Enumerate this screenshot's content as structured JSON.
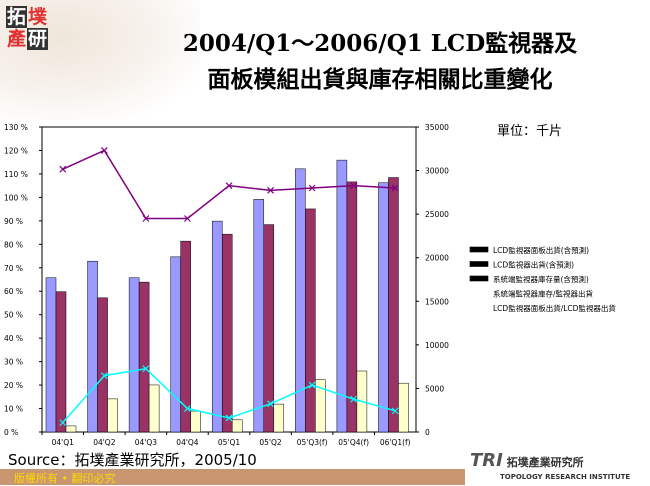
{
  "logo": {
    "chars": [
      "拓",
      "墣",
      "產",
      "研"
    ]
  },
  "title": {
    "line1": "2004/Q1～2006/Q1 LCD監視器及",
    "line2": "面板模組出貨與庫存相關比重變化"
  },
  "unit": "單位：千片",
  "source": "Source：拓墣產業研究所，2005/10",
  "footer": "版權所有 • 翻印必究",
  "brand": {
    "mark": "TRI",
    "name": "拓墣產業研究所",
    "en": "TOPOLOGY RESEARCH INSTITUTE"
  },
  "chart_data": {
    "type": "bar",
    "categories": [
      "04'Q1",
      "04'Q2",
      "04'Q3",
      "04'Q4",
      "05'Q1",
      "05'Q2",
      "05'Q3(f)",
      "05'Q4(f)",
      "06'Q1(f)"
    ],
    "y_left": {
      "range": [
        0,
        130
      ],
      "ticks": [
        "0 %",
        "10 %",
        "20 %",
        "30 %",
        "40 %",
        "50 %",
        "60 %",
        "70 %",
        "80 %",
        "90 %",
        "100 %",
        "110 %",
        "120 %",
        "130 %"
      ]
    },
    "y_right": {
      "range": [
        0,
        35000
      ],
      "ticks": [
        "0",
        "5000",
        "10000",
        "15000",
        "20000",
        "25000",
        "30000",
        "35000"
      ]
    },
    "bar_series": [
      {
        "name": "LCD監視器面板出貨(含預測)",
        "color": "#9999ff",
        "values": [
          17700,
          19600,
          17700,
          20100,
          24200,
          26700,
          30200,
          31200,
          28600
        ]
      },
      {
        "name": "LCD監視器出貨(含預測)",
        "color": "#993366",
        "values": [
          16100,
          15400,
          17200,
          21900,
          22700,
          23800,
          25600,
          28700,
          29200
        ]
      },
      {
        "name": "系統端監視器庫存量(含預測)",
        "color": "#ffffcc",
        "values": [
          700,
          3800,
          5400,
          2400,
          1400,
          3200,
          6000,
          7000,
          5600
        ]
      }
    ],
    "line_series": [
      {
        "name": "系統端監視器庫存/監視器出貨",
        "color": "#00ffff",
        "values": [
          4,
          24,
          27,
          10,
          6,
          12,
          20,
          14,
          9
        ]
      },
      {
        "name": "LCD監視器面板出貨/LCD監視器出貨",
        "color": "#800080",
        "values": [
          112,
          120,
          91,
          91,
          105,
          103,
          104,
          105,
          104
        ]
      }
    ],
    "legend_position": "right"
  }
}
